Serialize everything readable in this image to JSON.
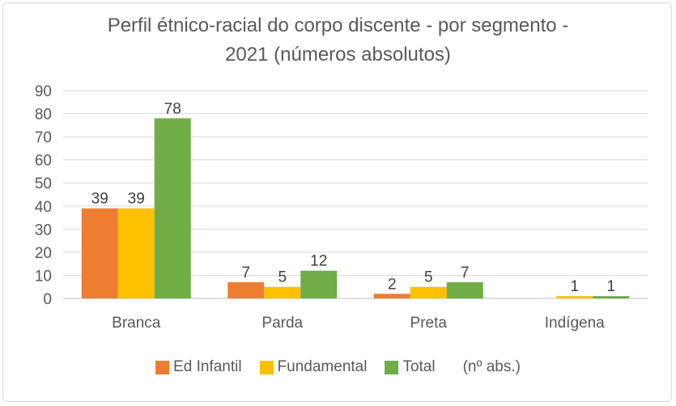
{
  "chart_data": {
    "type": "bar",
    "title_line1": "Perfil étnico-racial do corpo discente - por segmento -",
    "title_line2": "2021 (números absolutos)",
    "categories": [
      "Branca",
      "Parda",
      "Preta",
      "Indígena"
    ],
    "series": [
      {
        "name": "Ed Infantil",
        "color": "#ed7d31",
        "values": [
          39,
          7,
          2,
          null
        ]
      },
      {
        "name": "Fundamental",
        "color": "#ffc000",
        "values": [
          39,
          5,
          5,
          1
        ]
      },
      {
        "name": "Total",
        "color": "#70ad47",
        "values": [
          78,
          12,
          7,
          1
        ]
      }
    ],
    "legend_note": "(nº abs.)",
    "xlabel": "",
    "ylabel": "",
    "ylim": [
      0,
      90
    ],
    "yticks": [
      0,
      10,
      20,
      30,
      40,
      50,
      60,
      70,
      80,
      90
    ],
    "grid": true,
    "legend_position": "bottom"
  }
}
